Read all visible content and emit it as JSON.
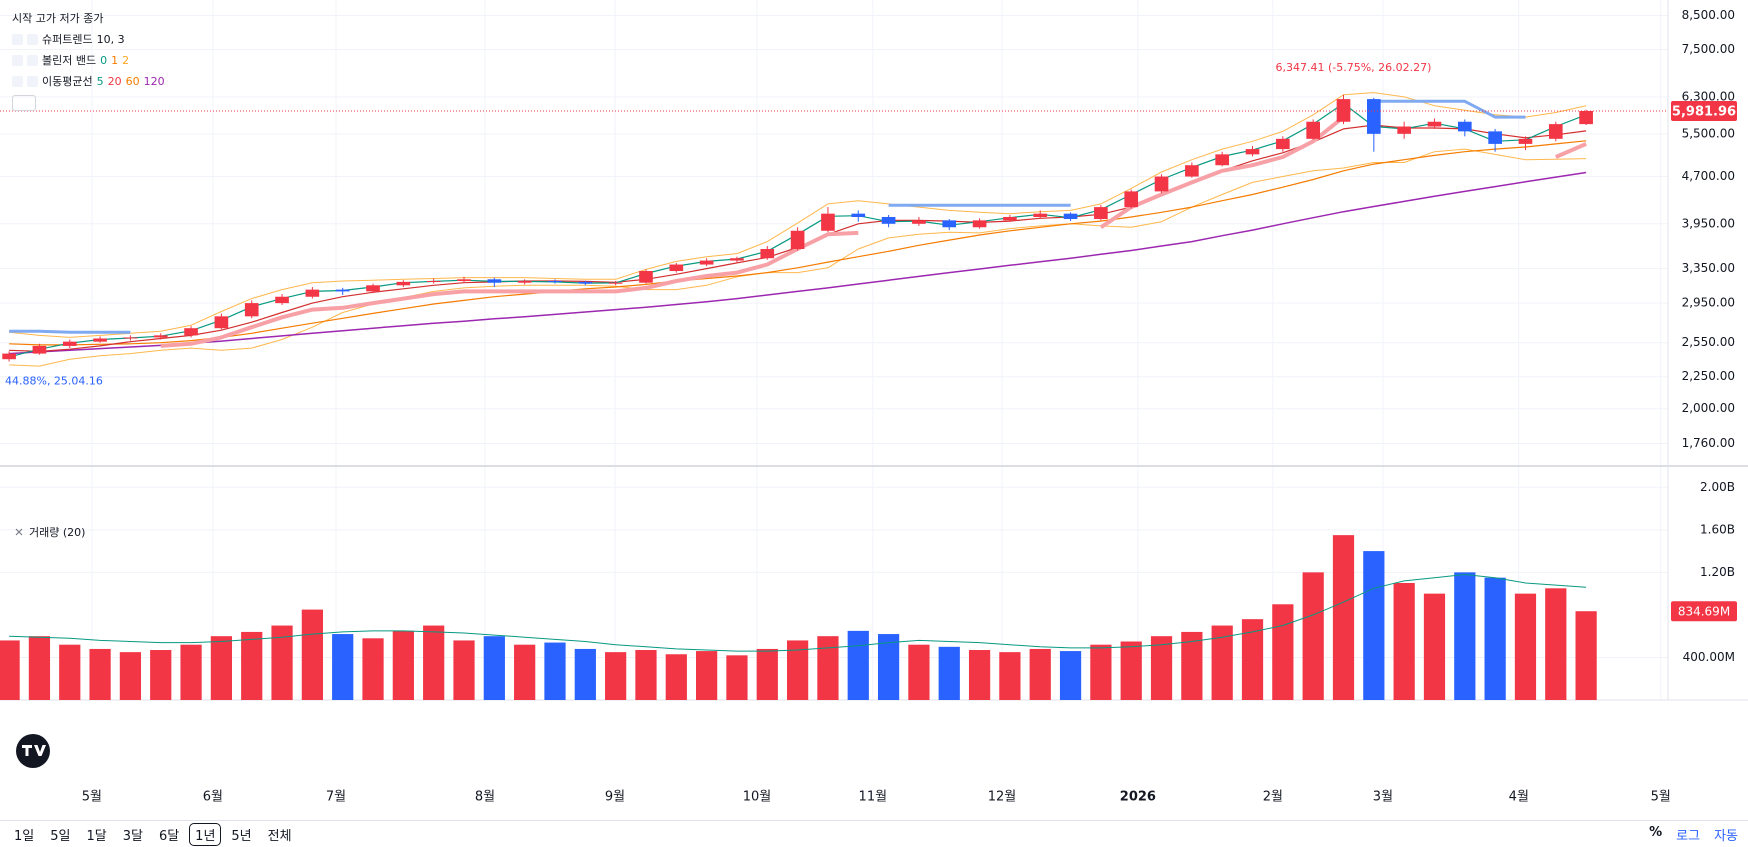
{
  "chart_data": [
    {
      "type": "candlestick",
      "legend_header": "시작 고가 저가 종가",
      "log_scale": true,
      "grid": true,
      "categories": [
        null,
        null,
        null,
        null,
        null,
        null,
        null,
        null,
        null,
        null,
        null,
        null,
        null,
        null,
        null,
        null,
        null,
        null,
        null,
        null,
        null,
        null,
        null,
        null,
        null,
        null,
        null,
        null,
        null,
        null,
        null,
        null,
        null,
        null,
        null,
        null,
        null,
        null,
        null,
        null,
        null,
        null,
        null,
        null,
        null,
        null,
        null,
        null,
        null,
        null,
        null,
        null,
        null
      ],
      "xlim": [
        -0.3,
        54.7
      ],
      "ylim": [
        1620,
        9000
      ],
      "yticks": [
        {
          "value": 8500,
          "label": "8,500.00"
        },
        {
          "value": 7500,
          "label": "7,500.00"
        },
        {
          "value": 6300,
          "label": "6,300.00"
        },
        {
          "value": 5500,
          "label": "5,500.00"
        },
        {
          "value": 4700,
          "label": "4,700.00"
        },
        {
          "value": 3950,
          "label": "3,950.00"
        },
        {
          "value": 3350,
          "label": "3,350.00"
        },
        {
          "value": 2950,
          "label": "2,950.00"
        },
        {
          "value": 2550,
          "label": "2,550.00"
        },
        {
          "value": 2250,
          "label": "2,250.00"
        },
        {
          "value": 2000,
          "label": "2,000.00"
        },
        {
          "value": 1760,
          "label": "1,760.00"
        }
      ],
      "up_color": "#f23645",
      "down_color": "#2962ff",
      "opens": [
        2400,
        2450,
        2520,
        2560,
        2590,
        2600,
        2620,
        2690,
        2810,
        2950,
        3020,
        3100,
        3080,
        3150,
        3190,
        3200,
        3220,
        3180,
        3200,
        3190,
        3170,
        3180,
        3320,
        3400,
        3450,
        3480,
        3600,
        3850,
        4100,
        4050,
        3950,
        4000,
        3900,
        4000,
        4050,
        4100,
        4020,
        4200,
        4450,
        4700,
        4900,
        5100,
        5200,
        5400,
        5750,
        6250,
        5500,
        5650,
        5750,
        5550,
        5300,
        5400,
        5700
      ],
      "highs": [
        2470,
        2540,
        2580,
        2610,
        2620,
        2640,
        2710,
        2840,
        2980,
        3050,
        3130,
        3120,
        3170,
        3210,
        3230,
        3250,
        3240,
        3220,
        3220,
        3200,
        3200,
        3340,
        3420,
        3480,
        3500,
        3640,
        3900,
        4200,
        4150,
        4080,
        4050,
        4020,
        4030,
        4080,
        4150,
        4120,
        4230,
        4480,
        4740,
        4950,
        5150,
        5260,
        5450,
        5800,
        6347.41,
        6280,
        5750,
        5820,
        5800,
        5600,
        5450,
        5750,
        6010
      ],
      "lows": [
        2380,
        2440,
        2500,
        2550,
        2570,
        2580,
        2600,
        2680,
        2790,
        2930,
        3000,
        3040,
        3060,
        3130,
        3170,
        3180,
        3130,
        3160,
        3170,
        3150,
        3150,
        3170,
        3300,
        3380,
        3430,
        3460,
        3580,
        3830,
        3980,
        3900,
        3920,
        3860,
        3880,
        3980,
        4030,
        3990,
        4000,
        4180,
        4420,
        4680,
        4880,
        5060,
        5150,
        5380,
        5700,
        5150,
        5400,
        5600,
        5450,
        5150,
        5180,
        5350,
        5680
      ],
      "closes": [
        2450,
        2520,
        2560,
        2590,
        2600,
        2620,
        2690,
        2810,
        2950,
        3020,
        3100,
        3080,
        3150,
        3190,
        3200,
        3220,
        3180,
        3200,
        3190,
        3170,
        3180,
        3320,
        3400,
        3450,
        3480,
        3600,
        3850,
        4100,
        4050,
        3950,
        4000,
        3900,
        4000,
        4050,
        4100,
        4020,
        4200,
        4450,
        4700,
        4900,
        5100,
        5200,
        5400,
        5750,
        6250,
        5500,
        5650,
        5750,
        5550,
        5300,
        5400,
        5700,
        5981.96
      ],
      "series": [
        {
          "color": "#ffb74d",
          "width": 1,
          "values": [
            2650,
            2620,
            2600,
            2620,
            2640,
            2660,
            2720,
            2860,
            3000,
            3100,
            3180,
            3200,
            3210,
            3220,
            3230,
            3240,
            3240,
            3240,
            3230,
            3220,
            3220,
            3340,
            3440,
            3500,
            3540,
            3700,
            3960,
            4250,
            4300,
            4250,
            4200,
            4150,
            4120,
            4100,
            4130,
            4150,
            4250,
            4500,
            4780,
            5000,
            5200,
            5350,
            5550,
            5900,
            6350,
            6400,
            6300,
            6100,
            6000,
            5900,
            5850,
            5950,
            6100
          ]
        },
        {
          "color": "#ffb74d",
          "width": 1,
          "values": [
            2350,
            2340,
            2400,
            2430,
            2450,
            2480,
            2500,
            2480,
            2500,
            2580,
            2700,
            2850,
            2940,
            3010,
            3080,
            3120,
            3140,
            3150,
            3150,
            3150,
            3140,
            3100,
            3100,
            3150,
            3250,
            3300,
            3300,
            3360,
            3600,
            3750,
            3800,
            3830,
            3820,
            3880,
            3920,
            3950,
            3920,
            3900,
            3980,
            4200,
            4400,
            4600,
            4700,
            4800,
            4850,
            4950,
            4950,
            5150,
            5200,
            5100,
            5000,
            5010,
            5020
          ]
        },
        {
          "color": "#9c27b0",
          "width": 1.5,
          "values": [
            2450,
            2465,
            2480,
            2495,
            2510,
            2525,
            2545,
            2565,
            2590,
            2615,
            2640,
            2665,
            2690,
            2715,
            2740,
            2760,
            2785,
            2805,
            2830,
            2855,
            2880,
            2905,
            2935,
            2965,
            3000,
            3040,
            3080,
            3120,
            3165,
            3210,
            3255,
            3300,
            3345,
            3390,
            3435,
            3480,
            3530,
            3580,
            3640,
            3700,
            3780,
            3860,
            3950,
            4040,
            4130,
            4210,
            4290,
            4370,
            4450,
            4530,
            4610,
            4690,
            4770
          ]
        },
        {
          "color": "#f57c00",
          "width": 1.2,
          "values": [
            2540,
            2530,
            2530,
            2535,
            2540,
            2550,
            2570,
            2600,
            2640,
            2690,
            2740,
            2790,
            2840,
            2890,
            2940,
            2980,
            3020,
            3050,
            3080,
            3110,
            3130,
            3160,
            3200,
            3230,
            3260,
            3300,
            3360,
            3430,
            3500,
            3570,
            3650,
            3720,
            3790,
            3850,
            3900,
            3950,
            3990,
            4050,
            4120,
            4200,
            4300,
            4400,
            4520,
            4650,
            4800,
            4920,
            5000,
            5080,
            5150,
            5200,
            5240,
            5300,
            5360
          ]
        },
        {
          "color": "#d32f2f",
          "width": 1.2,
          "values": [
            2480,
            2470,
            2490,
            2520,
            2560,
            2590,
            2620,
            2670,
            2750,
            2850,
            2950,
            3020,
            3070,
            3110,
            3150,
            3180,
            3190,
            3200,
            3200,
            3195,
            3185,
            3220,
            3280,
            3350,
            3420,
            3490,
            3620,
            3800,
            3950,
            4000,
            4000,
            3990,
            3970,
            3990,
            4030,
            4050,
            4090,
            4200,
            4380,
            4600,
            4800,
            4980,
            5130,
            5340,
            5600,
            5680,
            5620,
            5620,
            5600,
            5500,
            5420,
            5480,
            5560
          ]
        },
        {
          "color": "#089981",
          "width": 1.2,
          "values": [
            2420,
            2490,
            2545,
            2580,
            2595,
            2612,
            2665,
            2770,
            2910,
            3000,
            3080,
            3090,
            3130,
            3180,
            3195,
            3210,
            3195,
            3195,
            3190,
            3175,
            3178,
            3290,
            3380,
            3440,
            3470,
            3570,
            3800,
            4060,
            4070,
            3980,
            3990,
            3930,
            3980,
            4040,
            4090,
            4040,
            4160,
            4400,
            4650,
            4860,
            5060,
            5180,
            5360,
            5700,
            6150,
            5650,
            5600,
            5720,
            5600,
            5350,
            5380,
            5650,
            5900
          ]
        },
        {
          "color": "#f7a1a7",
          "width": 4,
          "values": [
            null,
            null,
            null,
            null,
            null,
            2520,
            2540,
            2600,
            2700,
            2800,
            2880,
            2900,
            2950,
            3000,
            3050,
            3080,
            3080,
            3080,
            3080,
            3080,
            3080,
            3120,
            3200,
            3260,
            3300,
            3400,
            3600,
            3800,
            3820,
            null,
            null,
            null,
            null,
            null,
            null,
            null,
            3900,
            4200,
            4400,
            4600,
            4800,
            4900,
            5050,
            5350,
            5850,
            null,
            null,
            null,
            null,
            null,
            null,
            5050,
            5300
          ]
        },
        {
          "color": "#7fa9f0",
          "width": 3,
          "values": [
            2660,
            2660,
            2650,
            2650,
            2650,
            null,
            null,
            null,
            null,
            null,
            null,
            null,
            null,
            null,
            null,
            null,
            null,
            null,
            null,
            null,
            null,
            null,
            null,
            null,
            null,
            null,
            null,
            null,
            null,
            4230,
            4230,
            4230,
            4230,
            4230,
            4230,
            4230,
            null,
            null,
            null,
            null,
            null,
            null,
            null,
            null,
            null,
            6200,
            6200,
            6200,
            6200,
            5850,
            5850,
            null,
            null
          ]
        }
      ],
      "indicators": [
        {
          "name": "슈퍼트렌드",
          "params": [
            {
              "text": "10, 3",
              "color": "#131722"
            }
          ]
        },
        {
          "name": "볼린저 밴드",
          "params": [
            {
              "text": 0,
              "color": "#089981"
            },
            {
              "text": 1,
              "color": "#f57c00"
            },
            {
              "text": 2,
              "color": "#ffa726"
            }
          ]
        },
        {
          "name": "이동평균선",
          "params": [
            {
              "text": 5,
              "color": "#089981"
            },
            {
              "text": 20,
              "color": "#f23645"
            },
            {
              "text": 60,
              "color": "#f57c00"
            },
            {
              "text": 120,
              "color": "#9c27b0"
            }
          ]
        }
      ],
      "current_price": {
        "value": 5981.96,
        "label": "5,981.96"
      },
      "annotations": [
        {
          "text": "6,347.41 (-5.75%, 26.02.27)",
          "color": "#f23645"
        },
        {
          "text": "44.88%, 25.04.16",
          "color": "#2962ff"
        }
      ]
    },
    {
      "type": "bar",
      "legend": "거래량 (20)",
      "grid": true,
      "xlim": [
        -0.3,
        54.7
      ],
      "xticks": [
        {
          "value": 2.73,
          "label": "5월"
        },
        {
          "value": 6.72,
          "label": "6월"
        },
        {
          "value": 10.78,
          "label": "7월"
        },
        {
          "value": 15.69,
          "label": "8월"
        },
        {
          "value": 19.98,
          "label": "9월"
        },
        {
          "value": 24.66,
          "label": "10월"
        },
        {
          "value": 28.48,
          "label": "11월"
        },
        {
          "value": 32.74,
          "label": "12월"
        },
        {
          "value": 37.22,
          "label": "2026",
          "bold": true
        },
        {
          "value": 41.67,
          "label": "2월"
        },
        {
          "value": 45.3,
          "label": "3월"
        },
        {
          "value": 49.78,
          "label": "4월"
        },
        {
          "value": 54.46,
          "label": "5월"
        }
      ],
      "ylim": [
        0,
        2200000000
      ],
      "yticks": [
        {
          "value": 2000000000,
          "label": "2.00B"
        },
        {
          "value": 1600000000,
          "label": "1.60B"
        },
        {
          "value": 1200000000,
          "label": "1.20B"
        },
        {
          "value": 400000000,
          "label": "400.00M"
        }
      ],
      "series": [
        {
          "values": [
            560000000,
            600000000,
            520000000,
            480000000,
            450000000,
            470000000,
            520000000,
            600000000,
            640000000,
            700000000,
            850000000,
            620000000,
            580000000,
            650000000,
            700000000,
            560000000,
            600000000,
            520000000,
            540000000,
            480000000,
            450000000,
            470000000,
            430000000,
            460000000,
            420000000,
            480000000,
            560000000,
            600000000,
            650000000,
            620000000,
            520000000,
            500000000,
            470000000,
            450000000,
            480000000,
            460000000,
            520000000,
            550000000,
            600000000,
            640000000,
            700000000,
            760000000,
            900000000,
            1200000000,
            1550000000,
            1400000000,
            1100000000,
            1000000000,
            1200000000,
            1150000000,
            1000000000,
            1050000000,
            834690000
          ]
        },
        {
          "color": "#089981",
          "values": [
            600000000,
            590000000,
            580000000,
            560000000,
            550000000,
            540000000,
            540000000,
            550000000,
            570000000,
            590000000,
            620000000,
            640000000,
            650000000,
            650000000,
            640000000,
            630000000,
            610000000,
            590000000,
            570000000,
            550000000,
            520000000,
            500000000,
            480000000,
            470000000,
            460000000,
            460000000,
            470000000,
            490000000,
            510000000,
            540000000,
            560000000,
            550000000,
            540000000,
            520000000,
            500000000,
            490000000,
            490000000,
            500000000,
            520000000,
            550000000,
            590000000,
            640000000,
            700000000,
            800000000,
            920000000,
            1050000000,
            1120000000,
            1150000000,
            1180000000,
            1150000000,
            1100000000,
            1080000000,
            1060000000
          ]
        }
      ],
      "current_volume": {
        "value": 834690000,
        "label": "834.69M"
      }
    }
  ],
  "toolbar": {
    "ranges": [
      "1일",
      "5일",
      "1달",
      "3달",
      "6달",
      "1년",
      "5년",
      "전체"
    ],
    "active": 5,
    "options": [
      "%",
      "로그",
      "자동"
    ]
  }
}
